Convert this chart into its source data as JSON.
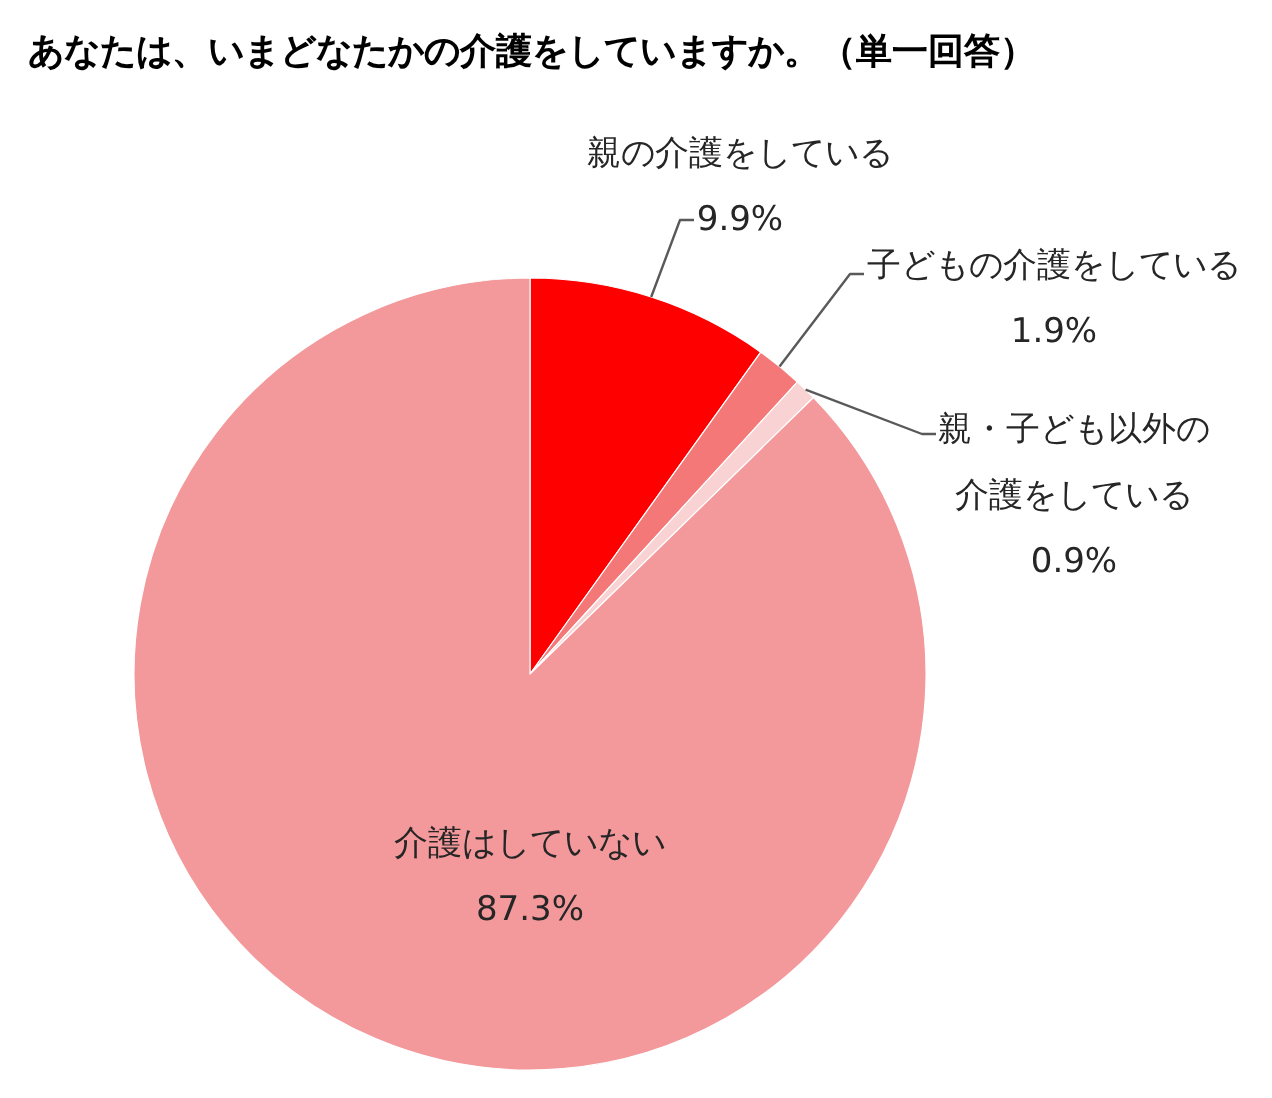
{
  "chart_data": {
    "type": "pie",
    "title": "あなたは、いまどなたかの介護をしていますか。（単一回答）",
    "categories": [
      "親の介護をしている",
      "子どもの介護をしている",
      "親・子ども以外の介護をしている",
      "介護はしていない"
    ],
    "values": [
      9.9,
      1.9,
      0.9,
      87.3
    ],
    "colors": [
      "#ff0000",
      "#f47878",
      "#f9d3d3",
      "#f4999b"
    ],
    "value_labels": [
      "9.9%",
      "1.9%",
      "0.9%",
      "87.3%"
    ]
  }
}
